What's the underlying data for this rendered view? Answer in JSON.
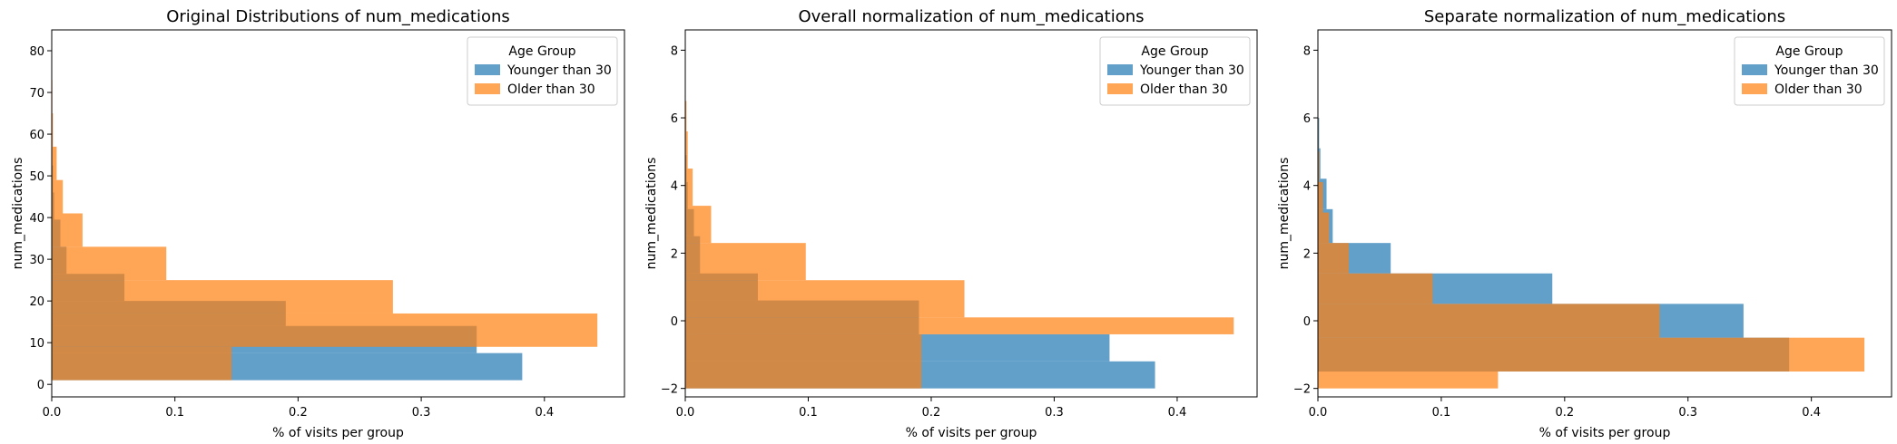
{
  "colors": {
    "young": "#1f77b4",
    "old": "#ff7f0e",
    "bar_alpha": 0.7
  },
  "legend": {
    "title": "Age Group",
    "entries": [
      "Younger than 30",
      "Older than 30"
    ]
  },
  "chart_data": [
    {
      "type": "bar",
      "orientation": "horizontal",
      "title": "Original Distributions of num_medications",
      "xlabel": "% of visits per group",
      "ylabel": "num_medications",
      "xlim": [
        0,
        0.465
      ],
      "ylim": [
        -3,
        85
      ],
      "xticks": [
        0.0,
        0.1,
        0.2,
        0.3,
        0.4
      ],
      "xtick_labels": [
        "0.0",
        "0.1",
        "0.2",
        "0.3",
        "0.4"
      ],
      "yticks": [
        0,
        10,
        20,
        30,
        40,
        50,
        60,
        70,
        80
      ],
      "ytick_labels": [
        "0",
        "10",
        "20",
        "30",
        "40",
        "50",
        "60",
        "70",
        "80"
      ],
      "legend_position": "top-right",
      "series": [
        {
          "name": "Younger than 30",
          "bins": [
            [
              1,
              7.5,
              0.382
            ],
            [
              7.5,
              14,
              0.345
            ],
            [
              14,
              20,
              0.19
            ],
            [
              20,
              26.5,
              0.059
            ],
            [
              26.5,
              33,
              0.012
            ],
            [
              33,
              39.5,
              0.007
            ],
            [
              39.5,
              46,
              0.002
            ],
            [
              46,
              52.5,
              0.001
            ]
          ]
        },
        {
          "name": "Older than 30",
          "bins": [
            [
              1,
              9,
              0.146
            ],
            [
              9,
              17,
              0.443
            ],
            [
              17,
              25,
              0.277
            ],
            [
              25,
              33,
              0.093
            ],
            [
              33,
              41,
              0.025
            ],
            [
              41,
              49,
              0.009
            ],
            [
              49,
              57,
              0.004
            ],
            [
              57,
              65,
              0.001
            ],
            [
              65,
              73,
              0.0005
            ],
            [
              73,
              81,
              0.0002
            ]
          ]
        }
      ]
    },
    {
      "type": "bar",
      "orientation": "horizontal",
      "title": "Overall normalization of num_medications",
      "xlabel": "% of visits per group",
      "ylabel": "num_medications",
      "xlim": [
        0,
        0.465
      ],
      "ylim": [
        -2.25,
        8.6
      ],
      "xticks": [
        0.0,
        0.1,
        0.2,
        0.3,
        0.4
      ],
      "xtick_labels": [
        "0.0",
        "0.1",
        "0.2",
        "0.3",
        "0.4"
      ],
      "yticks": [
        -2,
        0,
        2,
        4,
        6,
        8
      ],
      "ytick_labels": [
        "−2",
        "0",
        "2",
        "4",
        "6",
        "8"
      ],
      "legend_position": "top-right",
      "series": [
        {
          "name": "Younger than 30",
          "bins": [
            [
              -2,
              -1.2,
              0.382
            ],
            [
              -1.2,
              -0.4,
              0.345
            ],
            [
              -0.4,
              0.6,
              0.19
            ],
            [
              0.6,
              1.4,
              0.059
            ],
            [
              1.4,
              2.5,
              0.012
            ],
            [
              2.5,
              3.3,
              0.007
            ],
            [
              3.3,
              4.1,
              0.002
            ],
            [
              4.1,
              4.9,
              0.001
            ]
          ]
        },
        {
          "name": "Older than 30",
          "bins": [
            [
              -2,
              -0.4,
              0.192
            ],
            [
              -0.4,
              0.1,
              0.446
            ],
            [
              0.1,
              1.2,
              0.227
            ],
            [
              1.2,
              2.3,
              0.098
            ],
            [
              2.3,
              3.4,
              0.021
            ],
            [
              3.4,
              4.5,
              0.006
            ],
            [
              4.5,
              5.6,
              0.002
            ],
            [
              5.6,
              6.5,
              0.001
            ]
          ]
        }
      ]
    },
    {
      "type": "bar",
      "orientation": "horizontal",
      "title": "Separate normalization of num_medications",
      "xlabel": "% of visits per group",
      "ylabel": "num_medications",
      "xlim": [
        0,
        0.465
      ],
      "ylim": [
        -2.25,
        8.6
      ],
      "xticks": [
        0.0,
        0.1,
        0.2,
        0.3,
        0.4
      ],
      "xtick_labels": [
        "0.0",
        "0.1",
        "0.2",
        "0.3",
        "0.4"
      ],
      "yticks": [
        -2,
        0,
        2,
        4,
        6,
        8
      ],
      "ytick_labels": [
        "−2",
        "0",
        "2",
        "4",
        "6",
        "8"
      ],
      "legend_position": "top-right",
      "series": [
        {
          "name": "Younger than 30",
          "bins": [
            [
              -1.5,
              -0.5,
              0.382
            ],
            [
              -0.5,
              0.5,
              0.345
            ],
            [
              0.5,
              1.4,
              0.19
            ],
            [
              1.4,
              2.3,
              0.059
            ],
            [
              2.3,
              3.3,
              0.012
            ],
            [
              3.3,
              4.2,
              0.007
            ],
            [
              4.2,
              5.1,
              0.002
            ],
            [
              5.1,
              6.0,
              0.001
            ]
          ]
        },
        {
          "name": "Older than 30",
          "bins": [
            [
              -2,
              -1.5,
              0.146
            ],
            [
              -1.5,
              -0.5,
              0.443
            ],
            [
              -0.5,
              0.5,
              0.277
            ],
            [
              0.5,
              1.4,
              0.093
            ],
            [
              1.4,
              2.3,
              0.025
            ],
            [
              2.3,
              3.2,
              0.009
            ],
            [
              3.2,
              4.1,
              0.004
            ],
            [
              4.1,
              5.0,
              0.001
            ],
            [
              5.0,
              6.0,
              0.0005
            ]
          ]
        }
      ]
    }
  ]
}
